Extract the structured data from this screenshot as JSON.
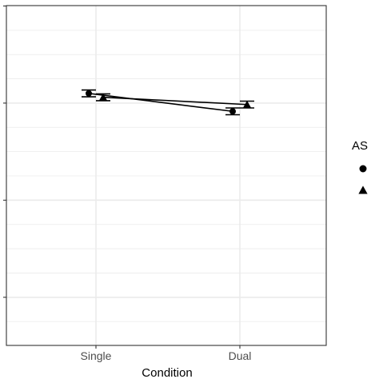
{
  "chart_data": {
    "type": "line",
    "xlabel": "Condition",
    "ylabel": "",
    "categories": [
      "Single",
      "Dual"
    ],
    "ylim": [
      0,
      7
    ],
    "y_major_ticks": [
      1,
      3,
      5,
      7
    ],
    "grid": true,
    "legend": {
      "title": "AS",
      "placement": "right",
      "entries": [
        {
          "shape": "circle",
          "label": ""
        },
        {
          "shape": "triangle",
          "label": ""
        }
      ]
    },
    "series": [
      {
        "shape": "circle",
        "values": [
          5.2,
          4.83
        ],
        "error": [
          0.07,
          0.07
        ]
      },
      {
        "shape": "triangle",
        "values": [
          5.12,
          4.97
        ],
        "error": [
          0.07,
          0.07
        ]
      }
    ],
    "colors": {
      "panel_background": "#ffffff",
      "grid": "#ebebeb",
      "panel_border": "#333333",
      "series": "#000000"
    }
  }
}
